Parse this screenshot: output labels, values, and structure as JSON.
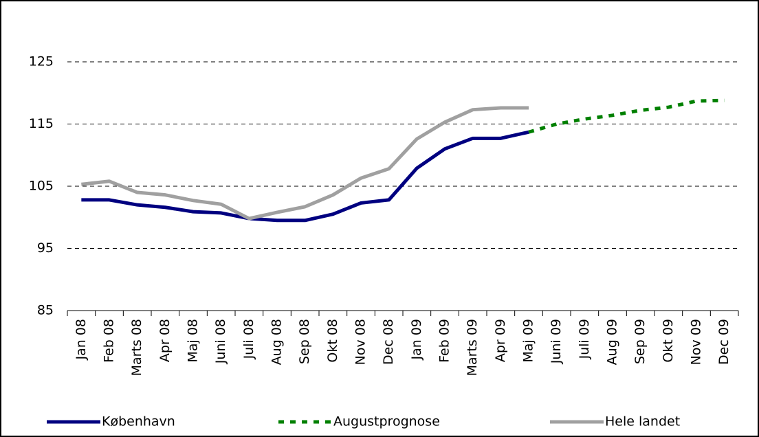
{
  "chart_data": {
    "type": "line",
    "categories": [
      "Jan 08",
      "Feb 08",
      "Marts 08",
      "Apr 08",
      "Maj 08",
      "Juni 08",
      "Juli 08",
      "Aug 08",
      "Sep 08",
      "Okt 08",
      "Nov 08",
      "Dec 08",
      "Jan 09",
      "Feb 09",
      "Marts 09",
      "Apr 09",
      "Maj 09",
      "Juni 09",
      "Juli 09",
      "Aug 09",
      "Sep 09",
      "Okt 09",
      "Nov 09",
      "Dec 09"
    ],
    "series": [
      {
        "name": "København",
        "color": "#000080",
        "dashed": false,
        "values": [
          102.8,
          102.8,
          102.0,
          101.6,
          100.9,
          100.7,
          99.8,
          99.5,
          99.5,
          100.5,
          102.3,
          102.8,
          107.9,
          111.0,
          112.7,
          112.7,
          113.7,
          null,
          null,
          null,
          null,
          null,
          null,
          null
        ]
      },
      {
        "name": "Augustprognose",
        "color": "#008000",
        "dashed": true,
        "values": [
          null,
          null,
          null,
          null,
          null,
          null,
          null,
          null,
          null,
          null,
          null,
          null,
          null,
          null,
          null,
          null,
          113.7,
          115.0,
          115.8,
          116.4,
          117.2,
          117.7,
          118.7,
          118.8
        ]
      },
      {
        "name": "Hele landet",
        "color": "#a0a0a0",
        "dashed": false,
        "values": [
          105.3,
          105.8,
          104.0,
          103.6,
          102.7,
          102.1,
          99.8,
          100.8,
          101.7,
          103.6,
          106.3,
          107.8,
          112.6,
          115.3,
          117.3,
          117.6,
          117.6,
          null,
          null,
          null,
          null,
          null,
          null,
          null
        ]
      }
    ],
    "ylim": [
      85,
      125
    ],
    "yticks": [
      85,
      95,
      105,
      115,
      125
    ],
    "grid": true,
    "legend": "bottom"
  }
}
